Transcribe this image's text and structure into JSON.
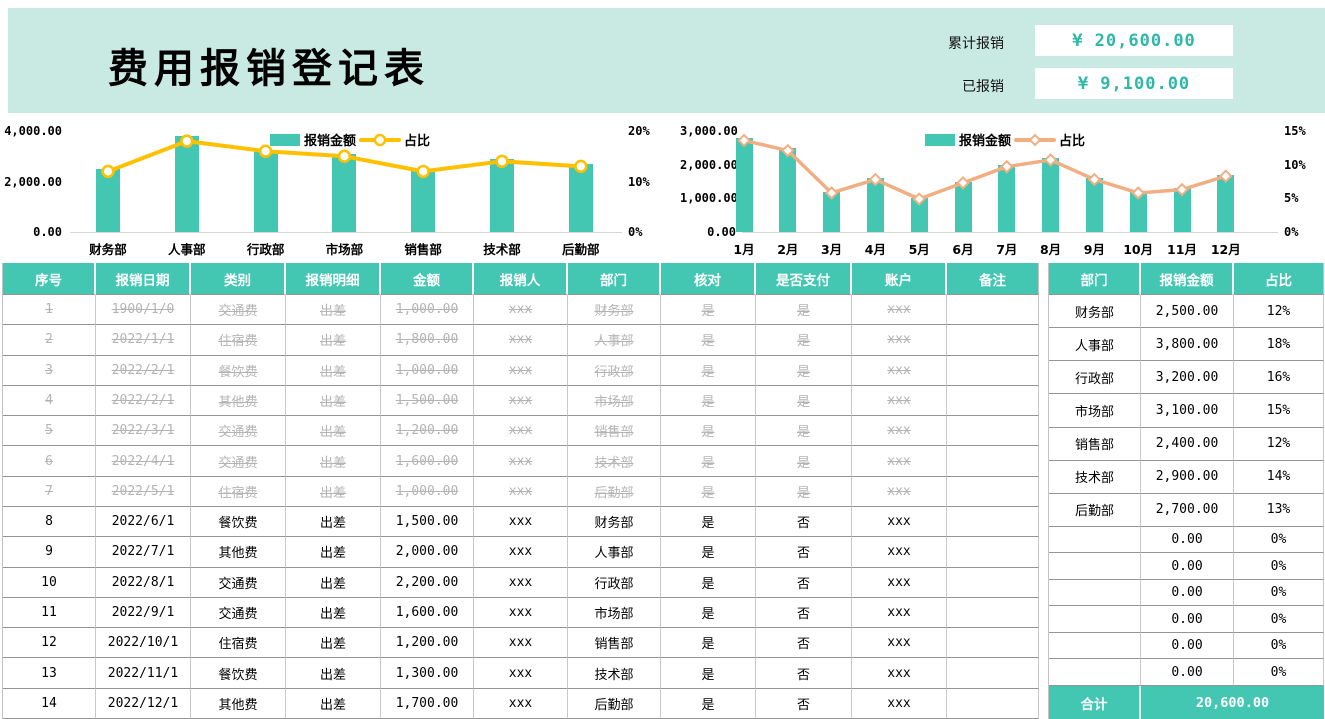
{
  "colors": {
    "accent_teal": "#44C7B2",
    "mint_background": "#C9EAE2",
    "stat_value_text": "#2FB7A8",
    "dept_line": "#FFC000",
    "month_line": "#F2AE83",
    "struck_text": "#B4B4B4"
  },
  "header": {
    "title": "费用报销登记表",
    "stats": [
      {
        "label": "累计报销",
        "value": "¥ 20,600.00"
      },
      {
        "label": "已报销",
        "value": "¥ 9,100.00"
      }
    ]
  },
  "chart_data": [
    {
      "type": "bar",
      "name": "department-chart",
      "categories": [
        "财务部",
        "人事部",
        "行政部",
        "市场部",
        "销售部",
        "技术部",
        "后勤部"
      ],
      "series": [
        {
          "name": "报销金额",
          "type": "bar",
          "axis": "left",
          "color": "#44C7B2",
          "values": [
            2500,
            3800,
            3200,
            3100,
            2400,
            2900,
            2700
          ]
        },
        {
          "name": "占比",
          "type": "line",
          "axis": "right",
          "color": "#FFC000",
          "marker": "circle",
          "values": [
            12,
            18,
            16,
            15,
            12,
            14,
            13
          ]
        }
      ],
      "left_axis": {
        "max": 4000,
        "ticks": [
          "4,000.00",
          "2,000.00",
          "0.00"
        ]
      },
      "right_axis": {
        "max": 20,
        "ticks": [
          "20%",
          "10%",
          "0%"
        ]
      },
      "legend_position": "top-center",
      "grid": false
    },
    {
      "type": "bar",
      "name": "month-chart",
      "categories": [
        "1月",
        "2月",
        "3月",
        "4月",
        "5月",
        "6月",
        "7月",
        "8月",
        "9月",
        "10月",
        "11月",
        "12月"
      ],
      "series": [
        {
          "name": "报销金额",
          "type": "bar",
          "axis": "left",
          "color": "#44C7B2",
          "values": [
            2800,
            2500,
            1200,
            1600,
            1000,
            1500,
            2000,
            2200,
            1600,
            1200,
            1300,
            1700
          ]
        },
        {
          "name": "占比",
          "type": "line",
          "axis": "right",
          "color": "#F2AE83",
          "marker": "diamond",
          "values": [
            13.6,
            12.1,
            5.8,
            7.8,
            4.9,
            7.3,
            9.7,
            10.7,
            7.8,
            5.8,
            6.3,
            8.3
          ]
        }
      ],
      "left_axis": {
        "max": 3000,
        "ticks": [
          "3,000.00",
          "2,000.00",
          "1,000.00",
          "0.00"
        ]
      },
      "right_axis": {
        "max": 15,
        "ticks": [
          "15%",
          "10%",
          "5%",
          "0%"
        ]
      },
      "legend_position": "top-center",
      "grid": false
    }
  ],
  "main_table": {
    "headers": [
      "序号",
      "报销日期",
      "类别",
      "报销明细",
      "金额",
      "报销人",
      "部门",
      "核对",
      "是否支付",
      "账户",
      "备注"
    ],
    "rows": [
      {
        "struck": true,
        "cells": [
          "1",
          "1900/1/0",
          "交通费",
          "出差",
          "1,000.00",
          "xxx",
          "财务部",
          "是",
          "是",
          "xxx",
          ""
        ]
      },
      {
        "struck": true,
        "cells": [
          "2",
          "2022/1/1",
          "住宿费",
          "出差",
          "1,800.00",
          "xxx",
          "人事部",
          "是",
          "是",
          "xxx",
          ""
        ]
      },
      {
        "struck": true,
        "cells": [
          "3",
          "2022/2/1",
          "餐饮费",
          "出差",
          "1,000.00",
          "xxx",
          "行政部",
          "是",
          "是",
          "xxx",
          ""
        ]
      },
      {
        "struck": true,
        "cells": [
          "4",
          "2022/2/1",
          "其他费",
          "出差",
          "1,500.00",
          "xxx",
          "市场部",
          "是",
          "是",
          "xxx",
          ""
        ]
      },
      {
        "struck": true,
        "cells": [
          "5",
          "2022/3/1",
          "交通费",
          "出差",
          "1,200.00",
          "xxx",
          "销售部",
          "是",
          "是",
          "xxx",
          ""
        ]
      },
      {
        "struck": true,
        "cells": [
          "6",
          "2022/4/1",
          "交通费",
          "出差",
          "1,600.00",
          "xxx",
          "技术部",
          "是",
          "是",
          "xxx",
          ""
        ]
      },
      {
        "struck": true,
        "cells": [
          "7",
          "2022/5/1",
          "住宿费",
          "出差",
          "1,000.00",
          "xxx",
          "后勤部",
          "是",
          "是",
          "xxx",
          ""
        ]
      },
      {
        "struck": false,
        "cells": [
          "8",
          "2022/6/1",
          "餐饮费",
          "出差",
          "1,500.00",
          "xxx",
          "财务部",
          "是",
          "否",
          "xxx",
          ""
        ]
      },
      {
        "struck": false,
        "cells": [
          "9",
          "2022/7/1",
          "其他费",
          "出差",
          "2,000.00",
          "xxx",
          "人事部",
          "是",
          "否",
          "xxx",
          ""
        ]
      },
      {
        "struck": false,
        "cells": [
          "10",
          "2022/8/1",
          "交通费",
          "出差",
          "2,200.00",
          "xxx",
          "行政部",
          "是",
          "否",
          "xxx",
          ""
        ]
      },
      {
        "struck": false,
        "cells": [
          "11",
          "2022/9/1",
          "交通费",
          "出差",
          "1,600.00",
          "xxx",
          "市场部",
          "是",
          "否",
          "xxx",
          ""
        ]
      },
      {
        "struck": false,
        "cells": [
          "12",
          "2022/10/1",
          "住宿费",
          "出差",
          "1,200.00",
          "xxx",
          "销售部",
          "是",
          "否",
          "xxx",
          ""
        ]
      },
      {
        "struck": false,
        "cells": [
          "13",
          "2022/11/1",
          "餐饮费",
          "出差",
          "1,300.00",
          "xxx",
          "技术部",
          "是",
          "否",
          "xxx",
          ""
        ]
      },
      {
        "struck": false,
        "cells": [
          "14",
          "2022/12/1",
          "其他费",
          "出差",
          "1,700.00",
          "xxx",
          "后勤部",
          "是",
          "否",
          "xxx",
          ""
        ]
      }
    ]
  },
  "summary_table": {
    "headers": [
      "部门",
      "报销金额",
      "占比"
    ],
    "rows": [
      [
        "财务部",
        "2,500.00",
        "12%"
      ],
      [
        "人事部",
        "3,800.00",
        "18%"
      ],
      [
        "行政部",
        "3,200.00",
        "16%"
      ],
      [
        "市场部",
        "3,100.00",
        "15%"
      ],
      [
        "销售部",
        "2,400.00",
        "12%"
      ],
      [
        "技术部",
        "2,900.00",
        "14%"
      ],
      [
        "后勤部",
        "2,700.00",
        "13%"
      ],
      [
        "",
        "0.00",
        "0%"
      ],
      [
        "",
        "0.00",
        "0%"
      ],
      [
        "",
        "0.00",
        "0%"
      ],
      [
        "",
        "0.00",
        "0%"
      ],
      [
        "",
        "0.00",
        "0%"
      ],
      [
        "",
        "0.00",
        "0%"
      ]
    ],
    "total": {
      "label": "合计",
      "value": "20,600.00"
    }
  }
}
